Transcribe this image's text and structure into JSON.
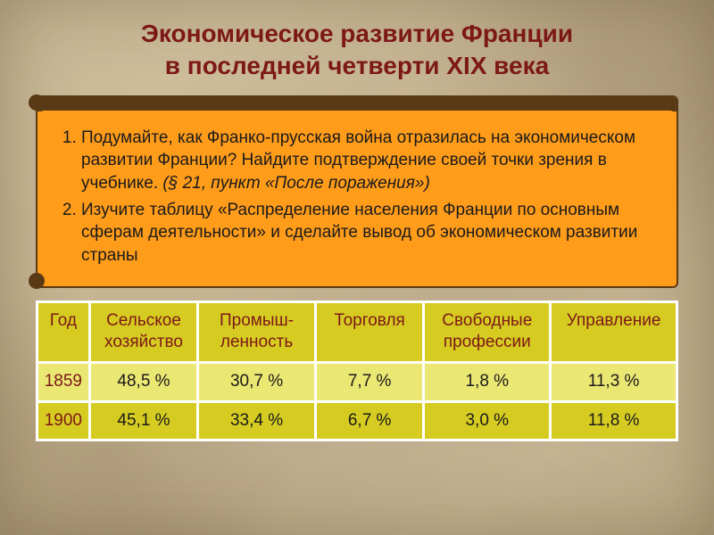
{
  "title": {
    "line1": "Экономическое развитие Франции",
    "line2": "в последней четверти XIX века"
  },
  "questions": [
    {
      "text": "Подумайте, как Франко-прусская война отразилась на экономическом развитии Франции? Найдите подтверждение своей точки зрения в учебнике. ",
      "emph": "(§ 21, пункт «После поражения»)"
    },
    {
      "text": "Изучите таблицу «Распределение населения Франции по основным сферам деятельности» и сделайте вывод об экономическом развитии страны",
      "emph": ""
    }
  ],
  "table": {
    "columns": [
      "Год",
      "Сельское хозяйство",
      "Промыш-ленность",
      "Торговля",
      "Свободные профессии",
      "Управление"
    ],
    "rows": [
      [
        "1859",
        "48,5 %",
        "30,7 %",
        "7,7 %",
        "1,8 %",
        "11,3 %"
      ],
      [
        "1900",
        "45,1 %",
        "33,4 %",
        "6,7 %",
        "3,0 %",
        "11,8 %"
      ]
    ],
    "header_bg": "#d6cc21",
    "header_color": "#7d1818",
    "row_colors": [
      "#eae773",
      "#d6cc21"
    ],
    "border_color": "#ffffff",
    "cell_font_size": 19
  },
  "colors": {
    "title": "#7d1818",
    "question_bg": "#ff9c1a",
    "question_border": "#5a3a15",
    "paper_bg": "#c9b896"
  }
}
